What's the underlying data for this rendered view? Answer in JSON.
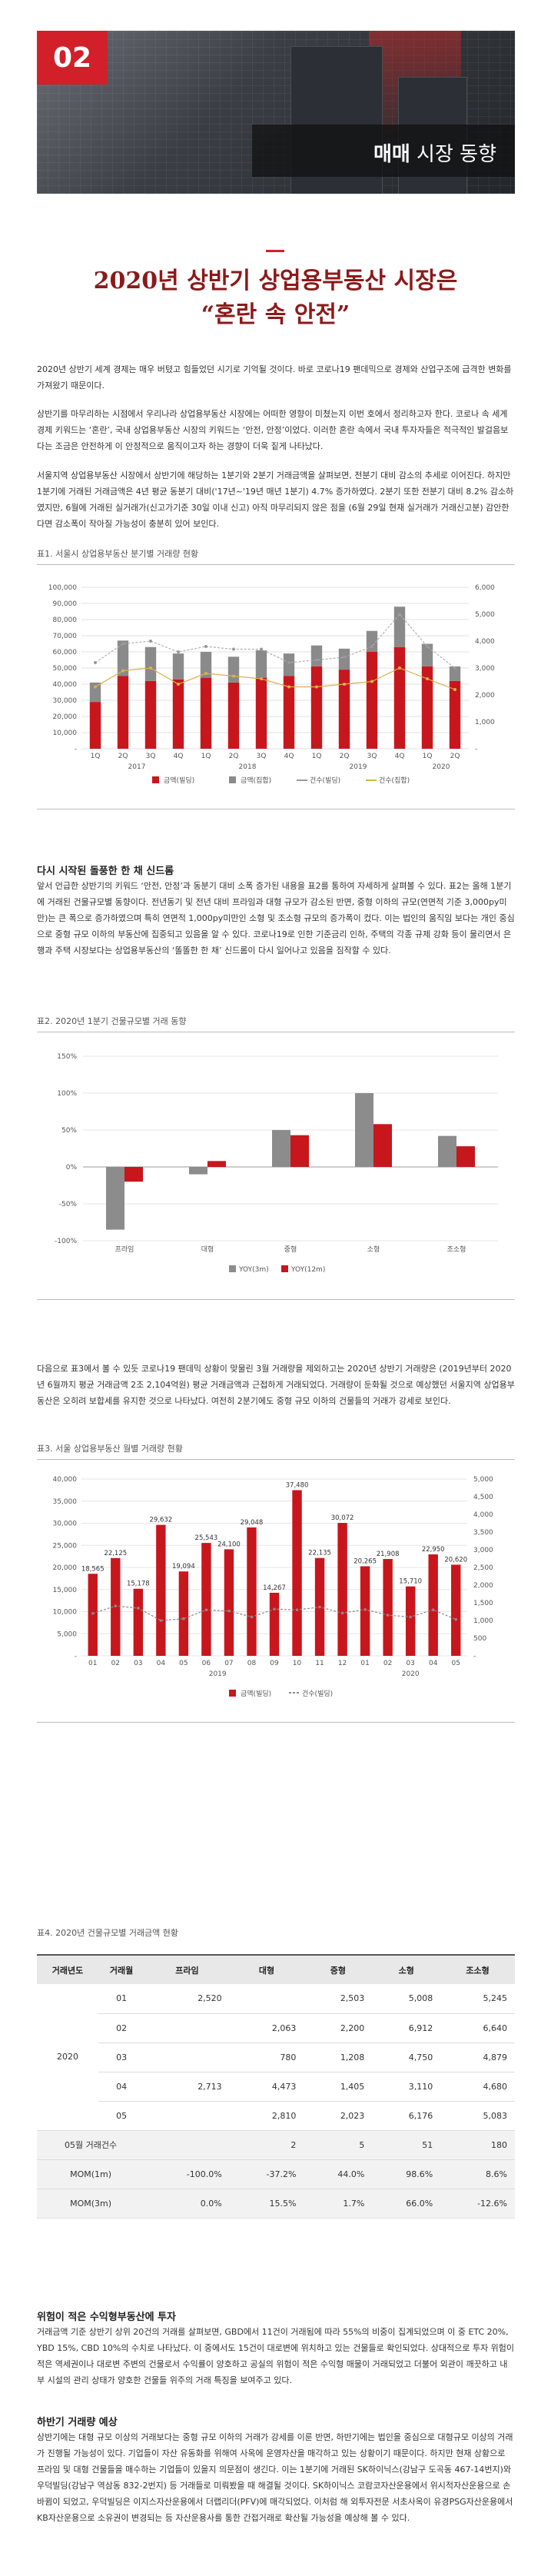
{
  "header": {
    "badge": "02",
    "label_bold": "매매",
    "label_rest": " 시장 동향"
  },
  "title": {
    "line1": "2020년 상반기 상업용부동산 시장은",
    "line2": "“혼란 속 안전”"
  },
  "intro": [
    "2020년 상반기 세계 경제는 매우 버텼고 힘들었던 시기로 기억될 것이다. 바로 코로나19 팬데믹으로 경제와 산업구조에 급격한 변화를 가져왔기 때문이다.",
    "상반기를 마무리하는 시점에서 우리나라 상업용부동산 시장에는 어떠한 영향이 미쳤는지 이번 호에서 정리하고자 한다. 코로나 속 세계 경제 키워드는 ‘혼란’, 국내 상업용부동산 시장의 키워드는 ‘안전, 안정’이었다. 이러한 혼란 속에서 국내 투자자들은 적극적인 발걸음보다는 조금은 안전하게 이 안정적으로 움직이고자 하는 경향이 더욱 짙게 나타났다.",
    "서울지역 상업용부동산 시장에서 상반기에 해당하는 1분기와 2분기 거래금액을 살펴보면, 전분기 대비 감소의 추세로 이어진다. 하지만 1분기에 거래된 거래금액은 4년 평균 동분기 대비('17년~'19년 매년 1분기) 4.7% 증가하였다. 2분기 또한 전분기 대비 8.2% 감소하였지만, 6월에 거래된 실거래가(신고가기준 30일 이내 신고) 아직 마무리되지 않은 점을 (6월 29일 현재 실거래가 거래신고분) 감안한다면 감소폭이 작아질 가능성이 충분히 있어 보인다."
  ],
  "chart1": {
    "caption": "표1. 서울시 상업용부동산 분기별 거래량 현황",
    "categories": [
      "1Q",
      "2Q",
      "3Q",
      "4Q",
      "1Q",
      "2Q",
      "3Q",
      "4Q",
      "1Q",
      "2Q",
      "3Q",
      "4Q",
      "1Q",
      "2Q"
    ],
    "years": [
      "2017",
      "2018",
      "2019",
      "2020"
    ],
    "y_left_ticks": [
      "100,000",
      "90,000",
      "80,000",
      "70,000",
      "60,000",
      "50,000",
      "40,000",
      "30,000",
      "20,000",
      "10,000",
      "-"
    ],
    "y_right_ticks": [
      "6,000",
      "5,000",
      "4,000",
      "3,000",
      "2,000",
      "1,000",
      "-"
    ],
    "legend": [
      "금액(빌딩)",
      "금액(집합)",
      "건수(빌딩)",
      "건수(집합)"
    ]
  },
  "chart_data": [
    {
      "type": "bar",
      "title": "",
      "categories": [
        "2017 1Q",
        "2017 2Q",
        "2017 3Q",
        "2017 4Q",
        "2018 1Q",
        "2018 2Q",
        "2018 3Q",
        "2018 4Q",
        "2019 1Q",
        "2019 2Q",
        "2019 3Q",
        "2019 4Q",
        "2020 1Q",
        "2020 2Q"
      ],
      "series": [
        {
          "name": "금액(빌딩)",
          "axis": "left",
          "values": [
            29000,
            45000,
            42000,
            43000,
            44000,
            41000,
            44000,
            45000,
            51000,
            49000,
            60000,
            63000,
            51000,
            42000
          ]
        },
        {
          "name": "금액(집합)",
          "axis": "left",
          "values": [
            12000,
            22000,
            21000,
            16000,
            16000,
            16000,
            17000,
            14000,
            13000,
            13000,
            13000,
            25000,
            14000,
            9000
          ]
        },
        {
          "name": "건수(빌딩)",
          "axis": "right",
          "values": [
            3200,
            3900,
            4000,
            3600,
            3800,
            3700,
            3700,
            3200,
            3300,
            3400,
            3800,
            5000,
            3800,
            3000
          ]
        },
        {
          "name": "건수(집합)",
          "axis": "right",
          "values": [
            2300,
            2900,
            3000,
            2400,
            2800,
            2700,
            2600,
            2300,
            2300,
            2400,
            2500,
            3000,
            2600,
            2200
          ]
        }
      ],
      "ylim": [
        0,
        100000
      ],
      "y2lim": [
        0,
        6000
      ]
    },
    {
      "type": "bar",
      "title": "",
      "categories": [
        "프라임",
        "대형",
        "중형",
        "소형",
        "조소형"
      ],
      "series": [
        {
          "name": "YOY(3m)",
          "values": [
            -85,
            -10,
            50,
            100,
            42
          ]
        },
        {
          "name": "YOY(12m)",
          "values": [
            -20,
            8,
            43,
            58,
            28
          ]
        }
      ],
      "ylim": [
        -100,
        150
      ]
    },
    {
      "type": "bar",
      "title": "",
      "categories": [
        "01",
        "02",
        "03",
        "04",
        "05",
        "06",
        "07",
        "08",
        "09",
        "10",
        "11",
        "12",
        "01",
        "02",
        "03",
        "04",
        "05"
      ],
      "series": [
        {
          "name": "금액(빌딩)",
          "axis": "left",
          "values": [
            18565,
            22125,
            15178,
            29632,
            19094,
            25543,
            24100,
            29048,
            14267,
            37480,
            22135,
            30072,
            20265,
            21908,
            15710,
            22950,
            20620
          ]
        },
        {
          "name": "건수(빌딩)",
          "axis": "right",
          "values": [
            1200,
            1410,
            1350,
            1000,
            1050,
            1300,
            1270,
            1100,
            1320,
            1300,
            1380,
            1210,
            1310,
            1150,
            1100,
            1300,
            1030
          ]
        }
      ],
      "ylim": [
        0,
        40000
      ],
      "y2lim": [
        0,
        5000
      ]
    }
  ],
  "section2": {
    "heading": "다시 시작된 돌풍한 한 채 신드롬",
    "body": "앞서 언급한 상반기의 키워드 ‘안전, 안정’과 동분기 대비 소폭 증가된 내용을 표2를 통하여 자세하게 살펴볼 수 있다. 표2는 올해 1분기에 거래된 건물규모별 동향이다. 전년동기 및 전년 대비 프라임과 대형 규모가 감소된 반면, 중형 이하의 규모(연면적 기준 3,000py미만)는 큰 폭으로 증가하였으며 특히 연면적 1,000py미만인 소형 및 조소형 규모의 증가폭이 컸다. 이는 법인의 움직임 보다는 개인 중심으로 중형 규모 이하의 부동산에 집중되고 있음을 알 수 있다. 코로나19로 인한 기준금리 인하, 주택의 각종 규제 강화 등이 물리면서 은행과 주택 시장보다는 상업용부동산의 ‘똘똘한 한 채’ 신드롬이 다시 일어나고 있음을 짐작할 수 있다."
  },
  "chart2": {
    "caption": "표2. 2020년 1분기 건물규모별 거래 동향",
    "y_ticks": [
      "150%",
      "100%",
      "50%",
      "0%",
      "-50%",
      "-100%"
    ],
    "legend": [
      "YOY(3m)",
      "YOY(12m)"
    ],
    "categories": [
      "프라임",
      "대형",
      "중형",
      "소형",
      "조소형"
    ]
  },
  "para3": "다음으로 표3에서 볼 수 있듯 코로나19 팬데믹 상황이 맞물린 3월 거래량을 제외하고는 2020년 상반기 거래량은 (2019년부터 2020년 6월까지 평균 거래금액 2조 2,104억원) 평균 거래금액과 근접하게 거래되었다. 거래량이 둔화될 것으로 예상했던 서울지역 상업용부동산은 오히려 보합세를 유지한 것으로 나타났다. 여전히 2분기에도 중형 규모 이하의 건물들의 거래가 강세로 보인다.",
  "chart3": {
    "caption": "표3. 서울 상업용부동산 월별 거래량 현황",
    "y_left_ticks": [
      "40,000",
      "35,000",
      "30,000",
      "25,000",
      "20,000",
      "15,000",
      "10,000",
      "5,000",
      "-"
    ],
    "y_right_ticks": [
      "5,000",
      "4,500",
      "4,000",
      "3,500",
      "3,000",
      "2,500",
      "2,000",
      "1,500",
      "1,000",
      "500",
      "-"
    ],
    "x_ticks": [
      "01",
      "02",
      "03",
      "04",
      "05",
      "06",
      "07",
      "08",
      "09",
      "10",
      "11",
      "12",
      "01",
      "02",
      "03",
      "04",
      "05"
    ],
    "years": [
      "2019",
      "2020"
    ],
    "legend": [
      "금액(빌딩)",
      "건수(빌딩)"
    ],
    "value_labels": [
      "18,565",
      "22,125",
      "15,178",
      "29,632",
      "19,094",
      "25,543",
      "24,100",
      "29,048",
      "14,267",
      "37,480",
      "22,135",
      "30,072",
      "20,265",
      "21,908",
      "15,710",
      "22,950",
      "20,620"
    ]
  },
  "table": {
    "caption": "표4. 2020년 건물규모별 거래금액 현황",
    "headers": [
      "거래년도",
      "거래월",
      "프라임",
      "대형",
      "중형",
      "소형",
      "조소형"
    ],
    "year": "2020",
    "rows": [
      {
        "month": "01",
        "cells": [
          "2,520",
          "",
          "2,503",
          "5,008",
          "5,245"
        ]
      },
      {
        "month": "02",
        "cells": [
          "",
          "2,063",
          "2,200",
          "6,912",
          "6,640"
        ]
      },
      {
        "month": "03",
        "cells": [
          "",
          "780",
          "1,208",
          "4,750",
          "4,879"
        ]
      },
      {
        "month": "04",
        "cells": [
          "2,713",
          "4,473",
          "1,405",
          "3,110",
          "4,680"
        ]
      },
      {
        "month": "05",
        "cells": [
          "",
          "2,810",
          "2,023",
          "6,176",
          "5,083"
        ]
      }
    ],
    "summary": [
      {
        "label": "05월 거래건수",
        "cells": [
          "",
          "2",
          "5",
          "51",
          "180"
        ]
      },
      {
        "label": "MOM(1m)",
        "cells": [
          "-100.0%",
          "-37.2%",
          "44.0%",
          "98.6%",
          "8.6%"
        ]
      },
      {
        "label": "MOM(3m)",
        "cells": [
          "0.0%",
          "15.5%",
          "1.7%",
          "66.0%",
          "-12.6%"
        ]
      }
    ]
  },
  "section3": {
    "heading": "위험이 적은 수익형부동산에 투자",
    "body": "거래금액 기준 상반기 상위 20건의 거래를 살펴보면, GBD에서 11건이 거래됨에 따라 55%의 비중이 집계되었으며 이 중 ETC 20%, YBD 15%, CBD 10%의 수치로 나타났다. 이 중에서도 15건이 대로변에 위치하고 있는 건물들로 확인되었다. 상대적으로 투자 위험이 적은 역세권이나 대로변 주변의 건물로서 수익률이 양호하고 공실의 위험이 적은 수익형 매물이 거래되었고 더불어 외관이 깨끗하고 내부 시설의 관리 상태가 양호한 건물들 위주의 거래 특징을 보여주고 있다."
  },
  "section4": {
    "heading": "하반기 거래량 예상",
    "body": "상반기에는 대형 규모 이상의 거래보다는 중형 규모 이하의 거래가 강세를 이룬 반면, 하반기에는 법인을 중심으로 대형규모 이상의 거래가 진행될 가능성이 있다. 기업들이 자산 유동화를 위해여 사옥에 운영자산을 매각하고 있는 상황이기 때문이다. 하지만 현재 상황으로 프라임 및 대형 건물들을 매수하는 기업들이 있을지 의문점이 생긴다. 이는 1분기에 거래된 SK하이닉스(강남구 도곡동 467-14번지)와 우덕빌딩(강남구 역삼동 832-2번지) 등 거래들로 미뤄봤을 때 해결될 것이다. SK하이닉스 코람코자산운용에서 위시적자산운용으로 손바뀜이 되었고, 우덕빌딩은 이지스자산운용에서 더랩리더(PFV)에 매각되었다. 이처럼 해 외투자전문 서초사옥이 유경PSG자산운용에서 KB자산운용으로 소유권이 변경되는 등 자산운용사를 통한 간접거래로 확산될 가능성을 예상해 볼 수 있다."
  }
}
